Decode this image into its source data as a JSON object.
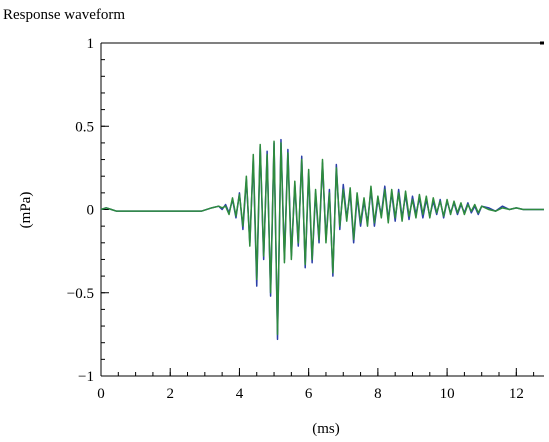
{
  "chart_data": {
    "type": "line",
    "title": "Response waveform",
    "xlabel": "(ms)",
    "ylabel": "(mPa)",
    "xlim": [
      0,
      12.8
    ],
    "ylim": [
      -1,
      1
    ],
    "x_ticks": [
      0,
      2,
      4,
      6,
      8,
      10,
      12
    ],
    "x_tick_labels": [
      "0",
      "2",
      "4",
      "6",
      "8",
      "10",
      "12"
    ],
    "y_ticks": [
      1,
      0.5,
      0,
      -0.5,
      -1
    ],
    "y_tick_labels": [
      "1",
      "0.5",
      "0",
      "−0.5",
      "−1"
    ],
    "grid": false,
    "legend": "none",
    "series": [
      {
        "color": "#2b3fa8",
        "x": [
          0,
          0.15,
          0.3,
          0.45,
          2.9,
          3.2,
          3.4,
          3.5,
          3.6,
          3.7,
          3.8,
          3.9,
          4.0,
          4.1,
          4.2,
          4.3,
          4.4,
          4.5,
          4.6,
          4.7,
          4.8,
          4.9,
          5.0,
          5.1,
          5.2,
          5.3,
          5.4,
          5.5,
          5.6,
          5.7,
          5.8,
          5.9,
          6.0,
          6.1,
          6.2,
          6.3,
          6.4,
          6.5,
          6.6,
          6.7,
          6.8,
          6.9,
          7.0,
          7.1,
          7.2,
          7.3,
          7.4,
          7.5,
          7.6,
          7.7,
          7.8,
          7.9,
          8.0,
          8.1,
          8.2,
          8.3,
          8.4,
          8.5,
          8.6,
          8.7,
          8.8,
          8.9,
          9.0,
          9.1,
          9.2,
          9.3,
          9.4,
          9.5,
          9.6,
          9.7,
          9.8,
          9.9,
          10.0,
          10.1,
          10.2,
          10.3,
          10.4,
          10.5,
          10.6,
          10.7,
          10.8,
          10.9,
          11.0,
          11.2,
          11.4,
          11.6,
          11.8,
          12.0,
          12.2,
          12.4,
          12.6,
          12.8
        ],
        "y": [
          0.0,
          0.01,
          0.0,
          -0.01,
          -0.01,
          0.01,
          0.02,
          0.0,
          0.03,
          -0.02,
          0.06,
          -0.05,
          0.1,
          -0.12,
          0.18,
          -0.2,
          0.3,
          -0.46,
          0.38,
          -0.3,
          0.35,
          -0.52,
          0.4,
          -0.78,
          0.42,
          -0.3,
          0.36,
          -0.28,
          0.15,
          -0.22,
          0.32,
          -0.35,
          0.22,
          -0.32,
          0.1,
          -0.2,
          0.28,
          -0.18,
          0.12,
          -0.4,
          0.27,
          -0.12,
          0.15,
          -0.05,
          0.1,
          -0.2,
          0.08,
          -0.1,
          0.05,
          -0.08,
          0.12,
          -0.1,
          0.06,
          -0.03,
          0.14,
          -0.06,
          0.1,
          -0.07,
          0.12,
          -0.05,
          0.09,
          -0.06,
          0.08,
          -0.03,
          0.07,
          -0.05,
          0.06,
          -0.04,
          0.05,
          -0.03,
          0.06,
          -0.05,
          0.05,
          -0.02,
          0.04,
          -0.03,
          0.03,
          -0.02,
          0.04,
          -0.02,
          0.02,
          -0.03,
          0.02,
          0.01,
          -0.01,
          0.02,
          0.0,
          0.01,
          0.0,
          0.0,
          0.0,
          0.0
        ]
      },
      {
        "color": "#2e8b3e",
        "x": [
          0,
          0.15,
          0.3,
          0.45,
          2.9,
          3.2,
          3.4,
          3.5,
          3.6,
          3.7,
          3.8,
          3.9,
          4.0,
          4.1,
          4.2,
          4.3,
          4.4,
          4.5,
          4.6,
          4.7,
          4.8,
          4.9,
          5.0,
          5.1,
          5.2,
          5.3,
          5.4,
          5.5,
          5.6,
          5.7,
          5.8,
          5.9,
          6.0,
          6.1,
          6.2,
          6.3,
          6.4,
          6.5,
          6.6,
          6.7,
          6.8,
          6.9,
          7.0,
          7.1,
          7.2,
          7.3,
          7.4,
          7.5,
          7.6,
          7.7,
          7.8,
          7.9,
          8.0,
          8.1,
          8.2,
          8.3,
          8.4,
          8.5,
          8.6,
          8.7,
          8.8,
          8.9,
          9.0,
          9.1,
          9.2,
          9.3,
          9.4,
          9.5,
          9.6,
          9.7,
          9.8,
          9.9,
          10.0,
          10.1,
          10.2,
          10.3,
          10.4,
          10.5,
          10.6,
          10.7,
          10.8,
          10.9,
          11.0,
          11.2,
          11.4,
          11.6,
          11.8,
          12.0,
          12.2,
          12.4,
          12.6,
          12.8
        ],
        "y": [
          0.0,
          0.01,
          0.0,
          -0.01,
          -0.01,
          0.01,
          0.02,
          0.01,
          0.02,
          -0.03,
          0.07,
          -0.04,
          0.09,
          -0.1,
          0.2,
          -0.22,
          0.33,
          -0.42,
          0.39,
          -0.28,
          0.33,
          -0.5,
          0.41,
          -0.75,
          0.4,
          -0.32,
          0.34,
          -0.3,
          0.17,
          -0.2,
          0.3,
          -0.33,
          0.24,
          -0.3,
          0.12,
          -0.18,
          0.3,
          -0.2,
          0.1,
          -0.38,
          0.25,
          -0.1,
          0.12,
          -0.07,
          0.13,
          -0.18,
          0.1,
          -0.08,
          0.07,
          -0.1,
          0.14,
          -0.08,
          0.08,
          -0.05,
          0.12,
          -0.08,
          0.12,
          -0.05,
          0.1,
          -0.07,
          0.11,
          -0.04,
          0.06,
          -0.05,
          0.09,
          -0.03,
          0.08,
          -0.05,
          0.07,
          -0.02,
          0.05,
          -0.04,
          0.06,
          -0.03,
          0.05,
          -0.02,
          0.04,
          -0.03,
          0.03,
          -0.01,
          0.03,
          -0.02,
          0.02,
          0.0,
          -0.01,
          0.01,
          0.0,
          0.01,
          0.0,
          0.0,
          0.0,
          0.0
        ]
      }
    ]
  }
}
